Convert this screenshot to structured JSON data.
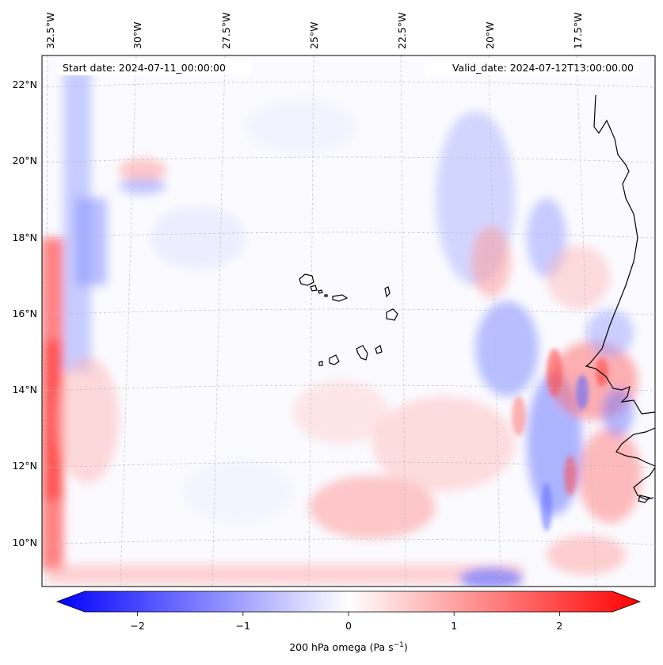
{
  "map": {
    "start_label": "Start date: 2024-07-11_00:00:00",
    "valid_label": "Valid_date: 2024-07-12T13:00:00.00",
    "lon_ticks": [
      "32.5°W",
      "30°W",
      "27.5°W",
      "25°W",
      "22.5°W",
      "20°W",
      "17.5°W"
    ],
    "lat_ticks": [
      "22°N",
      "20°N",
      "18°N",
      "16°N",
      "14°N",
      "12°N",
      "10°N"
    ],
    "colorbar": {
      "label_main": "200 hPa omega (Pa s",
      "label_sup": "−1",
      "label_end": ")",
      "ticks": [
        "−2",
        "−1",
        "0",
        "1",
        "2"
      ],
      "min": -2.7,
      "max": 2.7,
      "tick_values": [
        -2,
        -1,
        0,
        1,
        2
      ],
      "colors": {
        "low": "#0000ff",
        "mid": "#ffffff",
        "high": "#ff0000"
      }
    },
    "coast_color": "#000000",
    "grid": true
  }
}
